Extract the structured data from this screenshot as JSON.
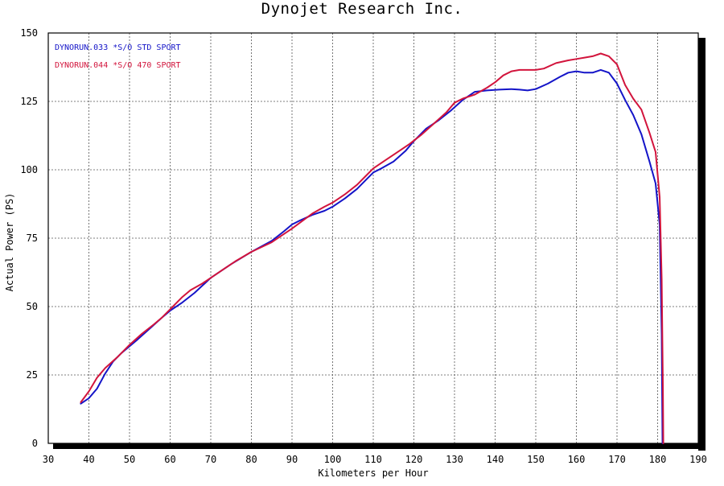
{
  "chart_data": {
    "type": "line",
    "title": "Dynojet  Research  Inc.",
    "xlabel": "Kilometers per Hour",
    "ylabel": "Actual Power (PS)",
    "xlim": [
      30,
      190
    ],
    "ylim": [
      0,
      150
    ],
    "x_ticks": [
      30,
      40,
      50,
      60,
      70,
      80,
      90,
      100,
      110,
      120,
      130,
      140,
      150,
      160,
      170,
      180,
      190
    ],
    "y_ticks": [
      0,
      25,
      50,
      75,
      100,
      125,
      150
    ],
    "grid": true,
    "legend_position": "top-left",
    "series": [
      {
        "name": "DYNORUN.033   *S/O STD SPORT",
        "color": "#1414c8",
        "points": [
          [
            38,
            14.5
          ],
          [
            40,
            16.5
          ],
          [
            42,
            20
          ],
          [
            44,
            25.5
          ],
          [
            46,
            30
          ],
          [
            48,
            33
          ],
          [
            50,
            35.5
          ],
          [
            52,
            38
          ],
          [
            55,
            42
          ],
          [
            58,
            46
          ],
          [
            60,
            48.5
          ],
          [
            63,
            51.5
          ],
          [
            66,
            55
          ],
          [
            70,
            60.5
          ],
          [
            75,
            65.5
          ],
          [
            80,
            70
          ],
          [
            85,
            74
          ],
          [
            88,
            77.5
          ],
          [
            90,
            80
          ],
          [
            92,
            81.5
          ],
          [
            95,
            83.5
          ],
          [
            98,
            85
          ],
          [
            100,
            86.5
          ],
          [
            103,
            89.5
          ],
          [
            106,
            93
          ],
          [
            108,
            96
          ],
          [
            110,
            99
          ],
          [
            112,
            100.5
          ],
          [
            115,
            103
          ],
          [
            118,
            107
          ],
          [
            120,
            110.5
          ],
          [
            123,
            115
          ],
          [
            126,
            118
          ],
          [
            129,
            121.5
          ],
          [
            132,
            125.5
          ],
          [
            135,
            128.5
          ],
          [
            138,
            129
          ],
          [
            141,
            129.3
          ],
          [
            144,
            129.5
          ],
          [
            146,
            129.3
          ],
          [
            148,
            129
          ],
          [
            150,
            129.5
          ],
          [
            153,
            131.5
          ],
          [
            156,
            134
          ],
          [
            158,
            135.5
          ],
          [
            160,
            136
          ],
          [
            162,
            135.5
          ],
          [
            164,
            135.5
          ],
          [
            166,
            136.5
          ],
          [
            168,
            135.5
          ],
          [
            170,
            131.5
          ],
          [
            172,
            125.5
          ],
          [
            174,
            120
          ],
          [
            176,
            113
          ],
          [
            178,
            103
          ],
          [
            179.5,
            95
          ],
          [
            180.5,
            80
          ],
          [
            181,
            40
          ],
          [
            181.2,
            0
          ]
        ]
      },
      {
        "name": "DYNORUN.044   *S/O 470 SPORT",
        "color": "#d2143c",
        "points": [
          [
            38,
            15
          ],
          [
            40,
            19
          ],
          [
            42,
            24
          ],
          [
            44,
            27.5
          ],
          [
            47,
            31.5
          ],
          [
            50,
            36
          ],
          [
            53,
            40
          ],
          [
            56,
            43.5
          ],
          [
            58,
            46
          ],
          [
            60,
            49
          ],
          [
            63,
            53.5
          ],
          [
            65,
            56
          ],
          [
            68,
            58.5
          ],
          [
            70,
            60.5
          ],
          [
            73,
            63.5
          ],
          [
            76,
            66.5
          ],
          [
            80,
            70
          ],
          [
            85,
            73.5
          ],
          [
            90,
            78.5
          ],
          [
            95,
            84
          ],
          [
            98,
            86.5
          ],
          [
            100,
            88
          ],
          [
            103,
            91
          ],
          [
            106,
            94.5
          ],
          [
            108,
            97.5
          ],
          [
            110,
            100.5
          ],
          [
            113,
            103.5
          ],
          [
            116,
            106.5
          ],
          [
            119,
            109.5
          ],
          [
            122,
            113
          ],
          [
            125,
            117
          ],
          [
            128,
            121
          ],
          [
            130,
            124.5
          ],
          [
            132,
            126
          ],
          [
            135,
            127.5
          ],
          [
            138,
            130
          ],
          [
            140,
            132
          ],
          [
            142,
            134.5
          ],
          [
            144,
            136
          ],
          [
            146,
            136.5
          ],
          [
            148,
            136.5
          ],
          [
            150,
            136.5
          ],
          [
            152,
            137
          ],
          [
            155,
            139
          ],
          [
            158,
            140
          ],
          [
            160,
            140.5
          ],
          [
            162,
            141
          ],
          [
            164,
            141.5
          ],
          [
            166,
            142.5
          ],
          [
            168,
            141.5
          ],
          [
            170,
            138.5
          ],
          [
            172,
            131
          ],
          [
            174,
            126
          ],
          [
            176,
            122
          ],
          [
            178,
            113.5
          ],
          [
            179.5,
            106.5
          ],
          [
            180.5,
            90
          ],
          [
            181,
            60
          ],
          [
            181.3,
            20
          ],
          [
            181.4,
            0
          ]
        ]
      }
    ]
  }
}
